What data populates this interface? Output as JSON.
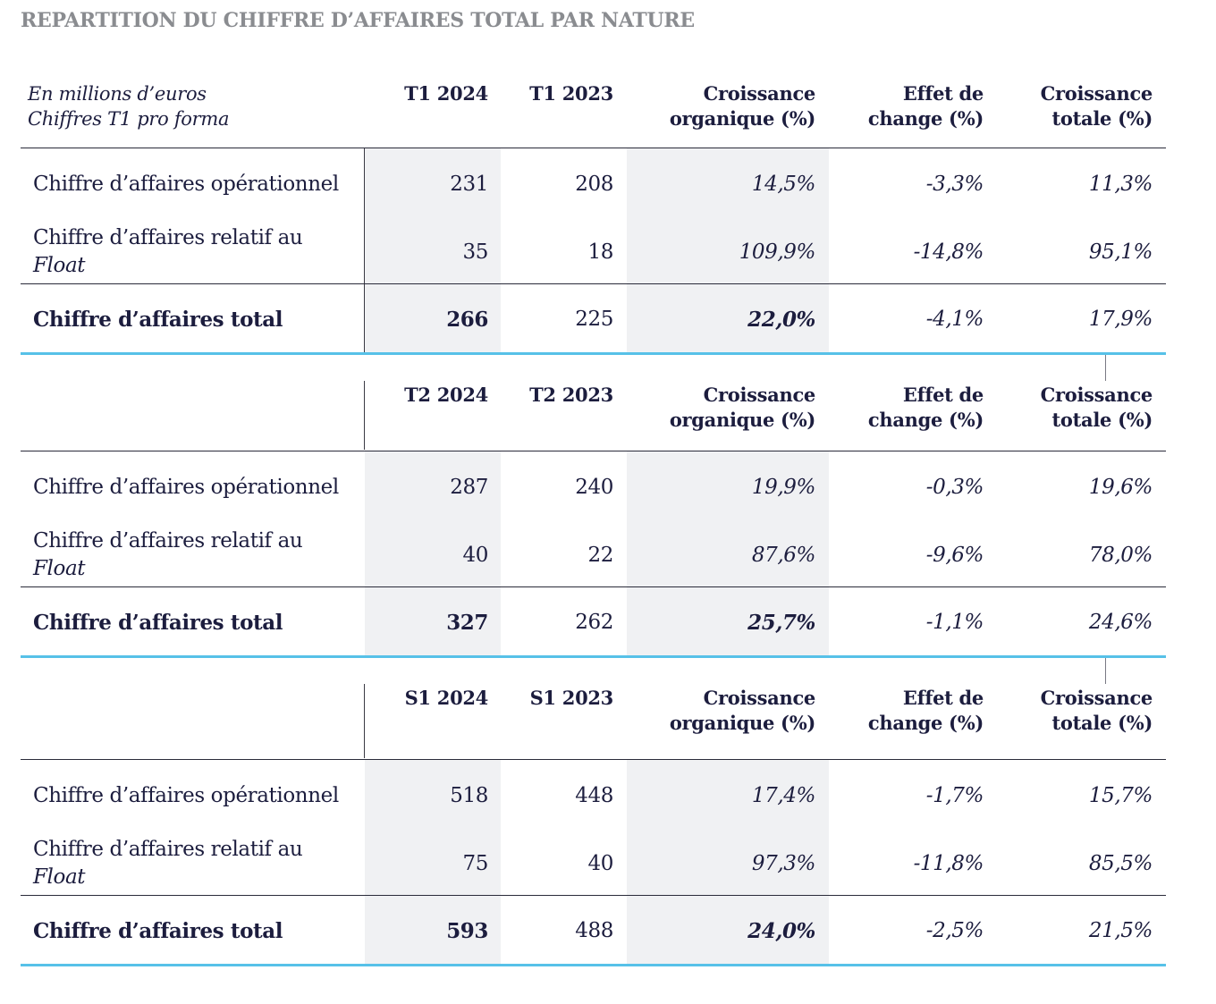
{
  "title": "REPARTITION DU CHIFFRE D’AFFAIRES TOTAL PAR NATURE",
  "units_line1": "En millions d’euros",
  "units_line2": "Chiffres T1 pro forma",
  "headers": {
    "organic_1": "Croissance",
    "organic_2": "organique (%)",
    "fx_1": "Effet de",
    "fx_2": "change (%)",
    "total_1": "Croissance",
    "total_2": "totale (%)"
  },
  "row_labels": {
    "operational": "Chiffre d’affaires opérationnel",
    "float_1": "Chiffre d’affaires relatif au",
    "float_2": "Float",
    "total": "Chiffre d’affaires total"
  },
  "sections": [
    {
      "col1": "T1 2024",
      "col2": "T1 2023",
      "rows": [
        {
          "v1": "231",
          "v2": "208",
          "organic": "14,5%",
          "fx": "-3,3%",
          "growth": "11,3%"
        },
        {
          "v1": "35",
          "v2": "18",
          "organic": "109,9%",
          "fx": "-14,8%",
          "growth": "95,1%"
        },
        {
          "v1": "266",
          "v2": "225",
          "organic": "22,0%",
          "fx": "-4,1%",
          "growth": "17,9%"
        }
      ]
    },
    {
      "col1": "T2 2024",
      "col2": "T2 2023",
      "rows": [
        {
          "v1": "287",
          "v2": "240",
          "organic": "19,9%",
          "fx": "-0,3%",
          "growth": "19,6%"
        },
        {
          "v1": "40",
          "v2": "22",
          "organic": "87,6%",
          "fx": "-9,6%",
          "growth": "78,0%"
        },
        {
          "v1": "327",
          "v2": "262",
          "organic": "25,7%",
          "fx": "-1,1%",
          "growth": "24,6%"
        }
      ]
    },
    {
      "col1": "S1 2024",
      "col2": "S1 2023",
      "rows": [
        {
          "v1": "518",
          "v2": "448",
          "organic": "17,4%",
          "fx": "-1,7%",
          "growth": "15,7%"
        },
        {
          "v1": "75",
          "v2": "40",
          "organic": "97,3%",
          "fx": "-11,8%",
          "growth": "85,5%"
        },
        {
          "v1": "593",
          "v2": "488",
          "organic": "24,0%",
          "fx": "-2,5%",
          "growth": "21,5%"
        }
      ]
    }
  ]
}
